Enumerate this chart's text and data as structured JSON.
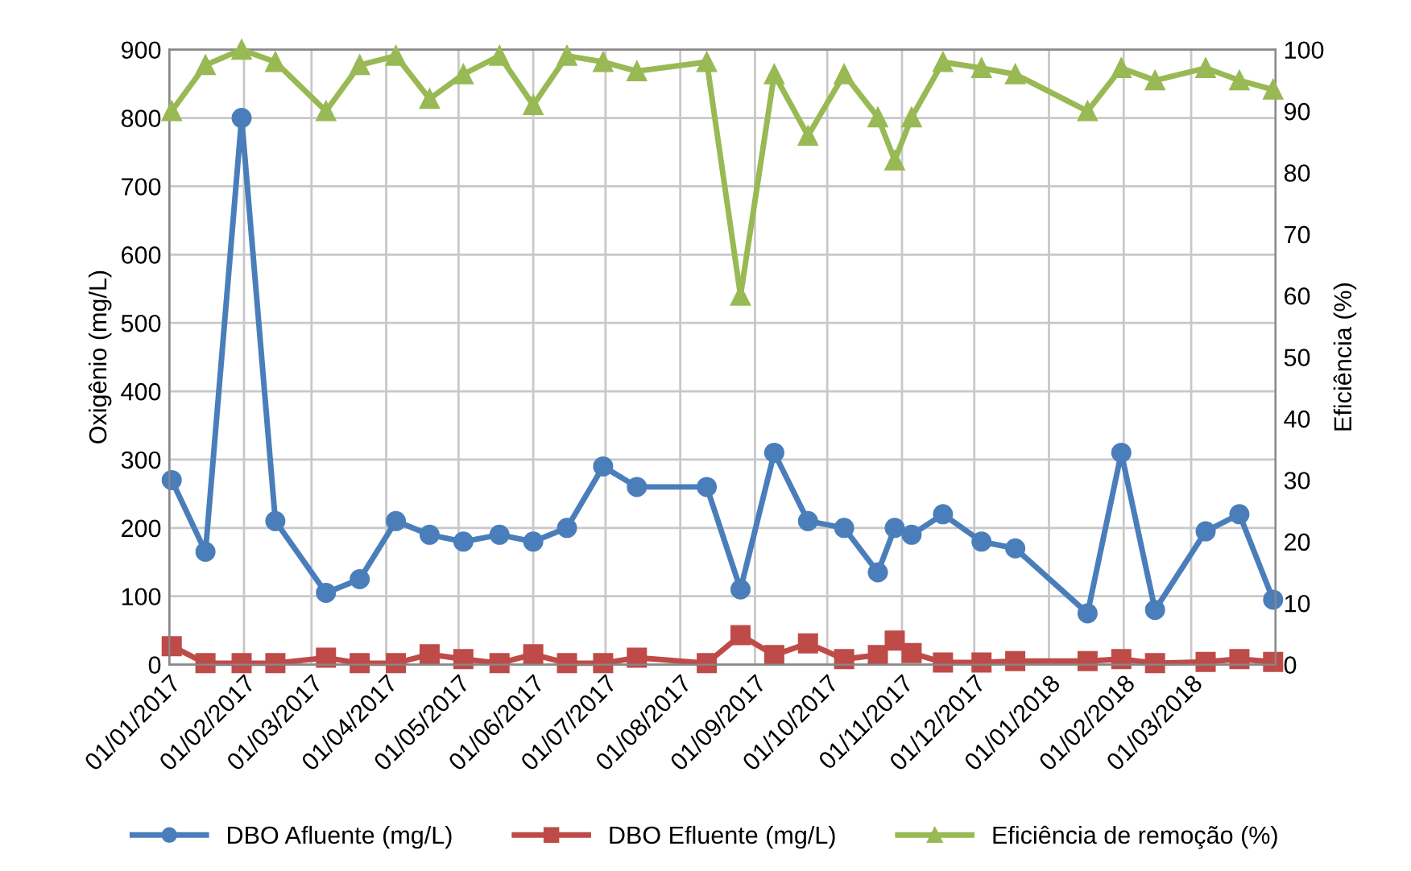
{
  "chart_data": {
    "type": "line",
    "ylabel": "Oxigênio (mg/L)",
    "y2label": "Eficiência (%)",
    "x": [
      "2017-01-02",
      "2017-01-16",
      "2017-01-31",
      "2017-02-14",
      "2017-03-07",
      "2017-03-21",
      "2017-04-05",
      "2017-04-19",
      "2017-05-03",
      "2017-05-18",
      "2017-06-01",
      "2017-06-15",
      "2017-06-30",
      "2017-07-14",
      "2017-08-12",
      "2017-08-26",
      "2017-09-09",
      "2017-09-23",
      "2017-10-08",
      "2017-10-22",
      "2017-10-29",
      "2017-11-05",
      "2017-11-18",
      "2017-12-04",
      "2017-12-18",
      "2018-01-17",
      "2018-01-31",
      "2018-02-14",
      "2018-03-07",
      "2018-03-21",
      "2018-04-04"
    ],
    "series": [
      {
        "name": "DBO Afluente (mg/L)",
        "color": "#4a7ebb",
        "marker": "circle",
        "values": [
          270,
          165,
          800,
          210,
          105,
          125,
          210,
          190,
          180,
          190,
          180,
          200,
          290,
          260,
          260,
          110,
          310,
          210,
          200,
          135,
          200,
          190,
          220,
          180,
          170,
          75,
          310,
          80,
          195,
          220,
          95
        ]
      },
      {
        "name": "DBO Efluente (mg/L)",
        "color": "#be4b48",
        "marker": "square",
        "values": [
          27,
          2,
          2,
          2,
          10,
          2,
          2,
          15,
          8,
          2,
          15,
          2,
          2,
          10,
          2,
          43,
          14,
          31,
          8,
          14,
          35,
          17,
          3,
          3,
          5,
          5,
          8,
          2,
          4,
          8,
          4
        ]
      },
      {
        "name": "Eficiência de remoção (%)",
        "color": "#98b954",
        "marker": "triangle",
        "axis": "y2",
        "values": [
          90,
          97.5,
          100,
          98,
          90,
          97.5,
          99,
          92,
          96,
          99,
          91,
          99,
          98,
          96.5,
          98,
          60,
          96,
          86,
          96,
          89,
          82,
          89,
          98,
          97,
          96,
          90,
          97,
          95,
          97,
          95,
          93.5
        ]
      }
    ],
    "xlim": [
      "2017-01-01",
      "2018-04-05"
    ],
    "xticks": [
      {
        "value": "2017-01-01",
        "label": "01/01/2017"
      },
      {
        "value": "2017-02-01",
        "label": "01/02/2017"
      },
      {
        "value": "2017-03-01",
        "label": "01/03/2017"
      },
      {
        "value": "2017-04-01",
        "label": "01/04/2017"
      },
      {
        "value": "2017-05-01",
        "label": "01/05/2017"
      },
      {
        "value": "2017-06-01",
        "label": "01/06/2017"
      },
      {
        "value": "2017-07-01",
        "label": "01/07/2017"
      },
      {
        "value": "2017-08-01",
        "label": "01/08/2017"
      },
      {
        "value": "2017-09-01",
        "label": "01/09/2017"
      },
      {
        "value": "2017-10-01",
        "label": "01/10/2017"
      },
      {
        "value": "2017-11-01",
        "label": "01/11/2017"
      },
      {
        "value": "2017-12-01",
        "label": "01/12/2017"
      },
      {
        "value": "2018-01-01",
        "label": "01/01/2018"
      },
      {
        "value": "2018-02-01",
        "label": "01/02/2018"
      },
      {
        "value": "2018-03-01",
        "label": "01/03/2018"
      }
    ],
    "ylim": [
      0,
      900
    ],
    "yticks": [
      0,
      100,
      200,
      300,
      400,
      500,
      600,
      700,
      800,
      900
    ],
    "y2lim": [
      0,
      100
    ],
    "y2ticks": [
      0,
      10,
      20,
      30,
      40,
      50,
      60,
      70,
      80,
      90,
      100
    ],
    "grid": true,
    "legend": "bottom",
    "line_style": "solid"
  }
}
